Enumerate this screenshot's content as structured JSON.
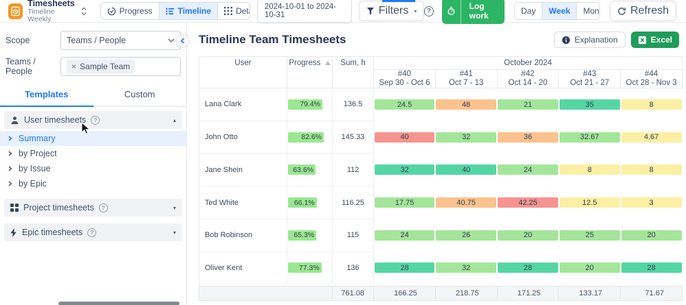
{
  "topbar": {
    "app": {
      "title": "Timesheets",
      "subtitle": "Timeline Weekly"
    },
    "views": [
      {
        "label": "Progress",
        "active": false
      },
      {
        "label": "Timeline",
        "active": true
      },
      {
        "label": "Detailed",
        "active": false
      }
    ],
    "date_range": "2024-10-01 to 2024-10-31",
    "filters_label": "Filters",
    "log_work_label": "Log work",
    "period_options": [
      {
        "label": "Day",
        "active": false
      },
      {
        "label": "Week",
        "active": true
      },
      {
        "label": "Month",
        "active": false
      }
    ],
    "refresh_label": "Refresh",
    "help_glyph": "?"
  },
  "sidebar": {
    "scope_label": "Scope",
    "scope_value": "Teams / People",
    "teams_label": "Teams / People",
    "team_tag": "Sample Team",
    "tag_remove_glyph": "×",
    "tabs": [
      {
        "label": "Templates",
        "active": true
      },
      {
        "label": "Custom",
        "active": false
      }
    ],
    "sections": [
      {
        "label": "User timesheets",
        "icon": "user-icon",
        "expanded": true,
        "items": [
          {
            "label": "Summary",
            "active": true
          },
          {
            "label": "by Project",
            "active": false
          },
          {
            "label": "by Issue",
            "active": false
          },
          {
            "label": "by Epic",
            "active": false
          }
        ]
      },
      {
        "label": "Project timesheets",
        "icon": "grid-icon",
        "expanded": false
      },
      {
        "label": "Epic timesheets",
        "icon": "epic-bolt-icon",
        "expanded": false
      }
    ]
  },
  "main": {
    "title": "Timeline Team Timesheets",
    "explanation_label": "Explanation",
    "excel_label": "Excel"
  },
  "table": {
    "columns": {
      "user": "User",
      "progress": "Progress",
      "sum": "Sum, h",
      "month": "October 2024"
    },
    "weeks": [
      {
        "num": "#40",
        "range": "Sep 30 - Oct 6"
      },
      {
        "num": "#41",
        "range": "Oct 7 - 13"
      },
      {
        "num": "#42",
        "range": "Oct 14 - 20"
      },
      {
        "num": "#43",
        "range": "Oct 21 - 27"
      },
      {
        "num": "#44",
        "range": "Oct 28 - Nov 3"
      }
    ],
    "rows": [
      {
        "user": "Lana Clark",
        "progress": "79.4%",
        "progress_pct": 79.4,
        "sum": "136.5",
        "cells": [
          {
            "v": "24.5",
            "c": "green"
          },
          {
            "v": "48",
            "c": "orange"
          },
          {
            "v": "21",
            "c": "green"
          },
          {
            "v": "35",
            "c": "teal"
          },
          {
            "v": "8",
            "c": "yellow"
          }
        ]
      },
      {
        "user": "John Otto",
        "progress": "82.6%",
        "progress_pct": 82.6,
        "sum": "145.33",
        "cells": [
          {
            "v": "40",
            "c": "red"
          },
          {
            "v": "32",
            "c": "green"
          },
          {
            "v": "36",
            "c": "orange"
          },
          {
            "v": "32.67",
            "c": "green"
          },
          {
            "v": "4.67",
            "c": "yellow"
          }
        ]
      },
      {
        "user": "Jane Shein",
        "progress": "63.6%",
        "progress_pct": 63.6,
        "sum": "112",
        "cells": [
          {
            "v": "32",
            "c": "teal"
          },
          {
            "v": "40",
            "c": "teal"
          },
          {
            "v": "24",
            "c": "green"
          },
          {
            "v": "8",
            "c": "yellow"
          },
          {
            "v": "8",
            "c": "yellow"
          }
        ]
      },
      {
        "user": "Ted White",
        "progress": "66.1%",
        "progress_pct": 66.1,
        "sum": "116.25",
        "cells": [
          {
            "v": "17.75",
            "c": "green"
          },
          {
            "v": "40.75",
            "c": "orange"
          },
          {
            "v": "42.25",
            "c": "red"
          },
          {
            "v": "12.5",
            "c": "yellow"
          },
          {
            "v": "3",
            "c": "yellow"
          }
        ]
      },
      {
        "user": "Bob Robinson",
        "progress": "65.3%",
        "progress_pct": 65.3,
        "sum": "115",
        "cells": [
          {
            "v": "24",
            "c": "green"
          },
          {
            "v": "26",
            "c": "green"
          },
          {
            "v": "20",
            "c": "green"
          },
          {
            "v": "25",
            "c": "green"
          },
          {
            "v": "20",
            "c": "green"
          }
        ]
      },
      {
        "user": "Oliver Kent",
        "progress": "77.3%",
        "progress_pct": 77.3,
        "sum": "136",
        "cells": [
          {
            "v": "28",
            "c": "teal"
          },
          {
            "v": "32",
            "c": "green"
          },
          {
            "v": "28",
            "c": "teal"
          },
          {
            "v": "20",
            "c": "green"
          },
          {
            "v": "28",
            "c": "teal"
          }
        ]
      }
    ],
    "totals": {
      "sum": "761.08",
      "weeks": [
        "166.25",
        "218.75",
        "171.25",
        "133.17",
        "71.67"
      ]
    }
  },
  "colors": {
    "green": "#a3e699",
    "teal": "#54d6a3",
    "orange": "#fbc28d",
    "red": "#f7948f",
    "yellow": "#fcefa4",
    "progress_bar": "#9ae890",
    "accent_blue": "#1d7afc",
    "log_work_green": "#2cb565",
    "excel_green": "#1f9d5a",
    "app_orange": "#f7941f"
  },
  "icons": {
    "app": "clipboard-timer",
    "views": [
      "progress-circle",
      "timeline-list",
      "detailed-grid"
    ],
    "filters": "funnel",
    "log_work": "stopwatch",
    "refresh": "circular-arrow",
    "sections": [
      "user",
      "grid",
      "lightning-bolt"
    ],
    "explanation": "info-circle",
    "excel": "excel-x",
    "sort": "triangle-up"
  }
}
